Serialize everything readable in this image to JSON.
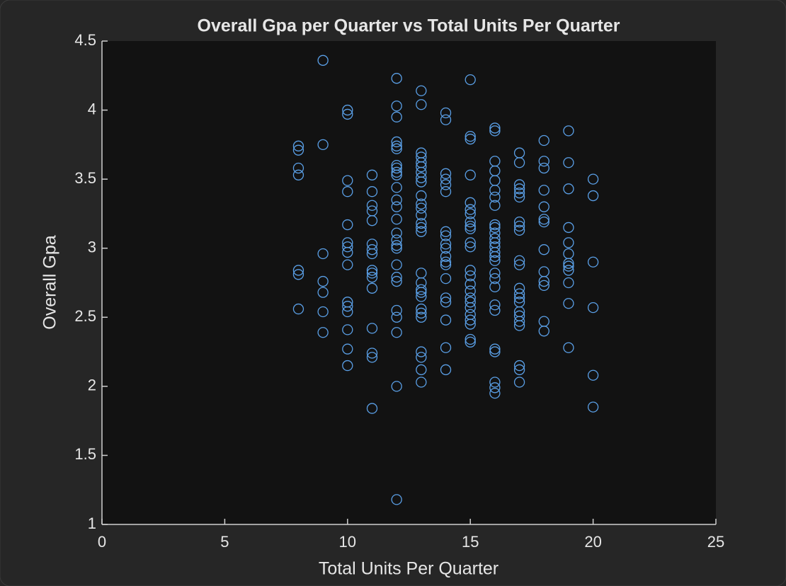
{
  "chart_data": {
    "type": "scatter",
    "title": "Overall Gpa per Quarter vs Total Units Per Quarter",
    "x_label": "Total Units Per Quarter",
    "y_label": "Overall Gpa",
    "color": "#5a9fe6",
    "xlim": [
      0,
      25
    ],
    "xticks": [
      0,
      5,
      10,
      15,
      20,
      25
    ],
    "ylim": [
      1,
      4.5
    ],
    "yticks": [
      1,
      1.5,
      2,
      2.5,
      3,
      3.5,
      4,
      4.5
    ],
    "x": [
      8,
      8,
      8,
      8,
      8,
      8,
      8,
      9,
      9,
      9,
      9,
      9,
      9,
      9,
      10,
      10,
      10,
      10,
      10,
      10,
      10,
      10,
      10,
      10,
      10,
      10,
      10,
      10,
      10,
      11,
      11,
      11,
      11,
      11,
      11,
      11,
      11,
      11,
      11,
      11,
      11,
      11,
      11,
      11,
      11,
      12,
      12,
      12,
      12,
      12,
      12,
      12,
      12,
      12,
      12,
      12,
      12,
      12,
      12,
      12,
      12,
      12,
      12,
      12,
      12,
      12,
      12,
      12,
      12,
      12,
      12,
      13,
      13,
      13,
      13,
      13,
      13,
      13,
      13,
      13,
      13,
      13,
      13,
      13,
      13,
      13,
      13,
      13,
      13,
      13,
      13,
      13,
      13,
      13,
      13,
      13,
      13,
      13,
      13,
      14,
      14,
      14,
      14,
      14,
      14,
      14,
      14,
      14,
      14,
      14,
      14,
      14,
      14,
      14,
      14,
      14,
      14,
      14,
      15,
      15,
      15,
      15,
      15,
      15,
      15,
      15,
      15,
      15,
      15,
      15,
      15,
      15,
      15,
      15,
      15,
      15,
      15,
      15,
      15,
      15,
      15,
      15,
      16,
      16,
      16,
      16,
      16,
      16,
      16,
      16,
      16,
      16,
      16,
      16,
      16,
      16,
      16,
      16,
      16,
      16,
      16,
      16,
      16,
      16,
      16,
      16,
      16,
      16,
      16,
      17,
      17,
      17,
      17,
      17,
      17,
      17,
      17,
      17,
      17,
      17,
      17,
      17,
      17,
      17,
      17,
      17,
      17,
      17,
      17,
      17,
      17,
      18,
      18,
      18,
      18,
      18,
      18,
      18,
      18,
      18,
      18,
      18,
      18,
      18,
      19,
      19,
      19,
      19,
      19,
      19,
      19,
      19,
      19,
      19,
      19,
      19,
      20,
      20,
      20,
      20,
      20,
      20
    ],
    "y": [
      3.74,
      3.71,
      3.58,
      3.53,
      2.84,
      2.81,
      2.56,
      4.36,
      3.75,
      2.96,
      2.76,
      2.68,
      2.54,
      2.39,
      4.0,
      3.97,
      3.49,
      3.41,
      3.17,
      3.04,
      3.01,
      2.97,
      2.88,
      2.61,
      2.58,
      2.54,
      2.41,
      2.27,
      2.15,
      3.53,
      3.41,
      3.31,
      3.27,
      3.2,
      3.03,
      2.99,
      2.96,
      2.84,
      2.82,
      2.79,
      2.71,
      2.42,
      2.24,
      2.21,
      1.84,
      4.23,
      4.03,
      3.95,
      3.77,
      3.74,
      3.72,
      3.6,
      3.58,
      3.55,
      3.53,
      3.44,
      3.35,
      3.3,
      3.21,
      3.11,
      3.06,
      3.02,
      3.0,
      2.88,
      2.79,
      2.76,
      2.55,
      2.5,
      2.39,
      2.0,
      1.18,
      4.14,
      4.04,
      3.69,
      3.66,
      3.62,
      3.59,
      3.55,
      3.51,
      3.48,
      3.38,
      3.32,
      3.29,
      3.24,
      3.18,
      3.15,
      3.12,
      2.82,
      2.75,
      2.7,
      2.68,
      2.65,
      2.56,
      2.53,
      2.5,
      2.25,
      2.21,
      2.12,
      2.03,
      3.98,
      3.93,
      3.54,
      3.5,
      3.46,
      3.41,
      3.12,
      3.09,
      3.03,
      3.0,
      2.94,
      2.9,
      2.88,
      2.78,
      2.64,
      2.61,
      2.48,
      2.28,
      2.12,
      4.22,
      3.81,
      3.79,
      3.53,
      3.33,
      3.28,
      3.25,
      3.19,
      3.16,
      3.14,
      3.04,
      3.01,
      2.84,
      2.8,
      2.74,
      2.69,
      2.64,
      2.61,
      2.57,
      2.52,
      2.48,
      2.45,
      2.34,
      2.32,
      3.87,
      3.85,
      3.63,
      3.56,
      3.49,
      3.42,
      3.37,
      3.31,
      3.17,
      3.15,
      3.11,
      3.07,
      3.04,
      3.01,
      2.97,
      2.94,
      2.91,
      2.82,
      2.78,
      2.72,
      2.59,
      2.55,
      2.27,
      2.25,
      2.03,
      1.99,
      1.95,
      3.69,
      3.62,
      3.46,
      3.43,
      3.4,
      3.37,
      3.19,
      3.16,
      3.13,
      2.91,
      2.88,
      2.71,
      2.67,
      2.64,
      2.61,
      2.54,
      2.51,
      2.47,
      2.44,
      2.15,
      2.12,
      2.03,
      3.78,
      3.63,
      3.58,
      3.42,
      3.3,
      3.21,
      3.19,
      2.99,
      2.83,
      2.76,
      2.73,
      2.47,
      2.4,
      3.85,
      3.62,
      3.43,
      3.15,
      3.04,
      2.96,
      2.89,
      2.87,
      2.84,
      2.75,
      2.6,
      2.28,
      3.5,
      3.38,
      2.9,
      2.57,
      2.08,
      1.85
    ]
  }
}
